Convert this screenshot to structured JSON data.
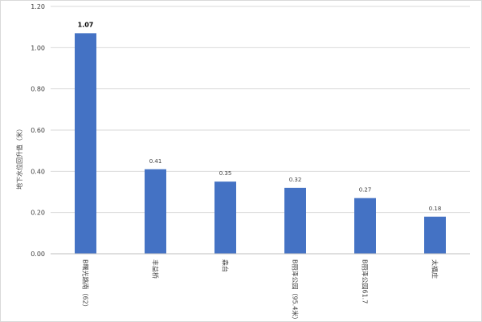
{
  "chart_data": {
    "type": "bar",
    "title": "",
    "xlabel": "",
    "ylabel": "地下水位回升值（米）",
    "ylim": [
      0,
      1.2
    ],
    "yticks": [
      "0.00",
      "0.20",
      "0.40",
      "0.60",
      "0.80",
      "1.00",
      "1.20"
    ],
    "categories": [
      "B曙光路南（62）",
      "丰益桥",
      "森台",
      "B丽泽公园（95.4米）",
      "B丽泽公园61.7",
      "太福庄"
    ],
    "values": [
      1.07,
      0.41,
      0.35,
      0.32,
      0.27,
      0.18
    ],
    "data_labels": [
      "1.07",
      "0.41",
      "0.35",
      "0.32",
      "0.27",
      "0.18"
    ],
    "bar_color": "#4472c4",
    "grid": true,
    "legend": "none"
  }
}
